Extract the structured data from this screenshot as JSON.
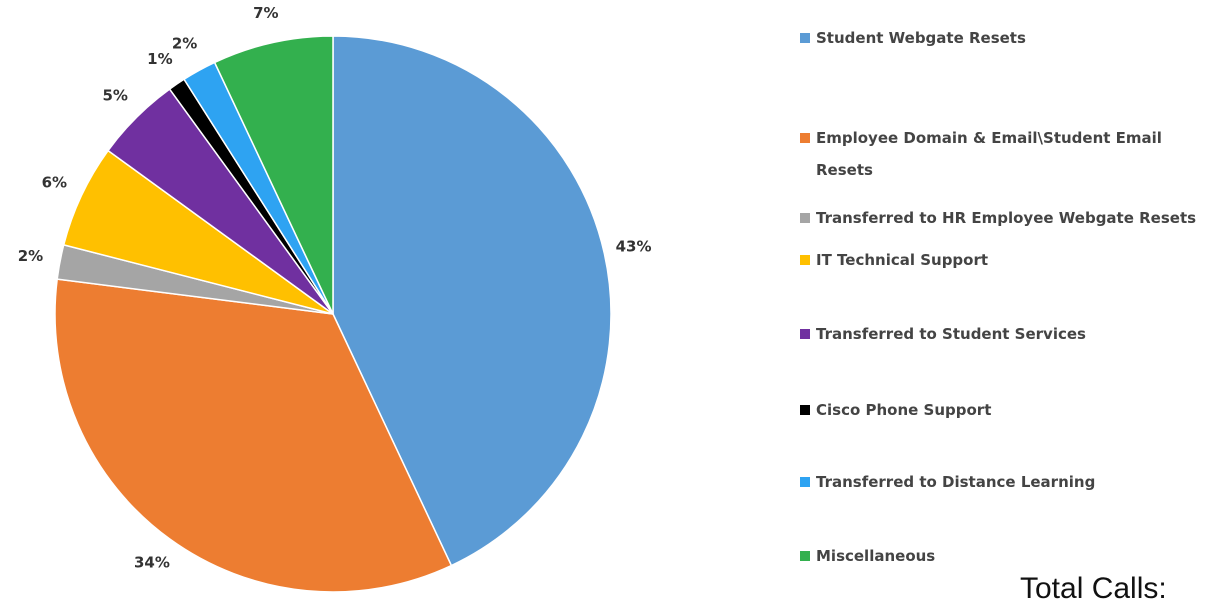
{
  "chart_data": {
    "type": "pie",
    "categories": [
      "Student Webgate Resets",
      "Employee Domain & Email\\Student Email Resets",
      "Transferred to HR Employee Webgate Resets",
      "IT Technical Support",
      "Transferred to Student Services",
      "Cisco Phone Support",
      "Transferred to Distance Learning",
      "Miscellaneous"
    ],
    "values": [
      43,
      34,
      2,
      6,
      5,
      1,
      2,
      7
    ],
    "value_labels": [
      "43%",
      "34%",
      "2%",
      "6%",
      "5%",
      "1%",
      "2%",
      "7%"
    ],
    "colors": [
      "#5b9bd5",
      "#ed7d31",
      "#a5a5a5",
      "#ffc000",
      "#7030a0",
      "#000000",
      "#2ea3f2",
      "#33b04e"
    ],
    "legend": "right",
    "annotation": "Total Calls:"
  }
}
